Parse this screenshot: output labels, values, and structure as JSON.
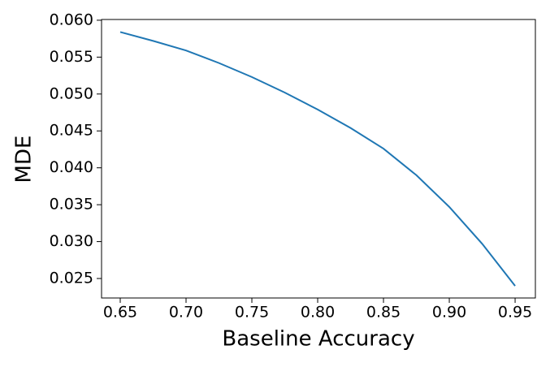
{
  "chart_data": {
    "type": "line",
    "x_label": "Baseline Accuracy",
    "y_label": "MDE",
    "x": [
      0.65,
      0.675,
      0.7,
      0.725,
      0.75,
      0.775,
      0.8,
      0.825,
      0.85,
      0.875,
      0.9,
      0.925,
      0.95
    ],
    "series": [
      {
        "color": "#1f77b4",
        "values": [
          0.0584,
          0.0572,
          0.0559,
          0.0542,
          0.0523,
          0.0502,
          0.0479,
          0.0454,
          0.0426,
          0.039,
          0.0347,
          0.0297,
          0.024
        ]
      }
    ],
    "xlim": [
      0.6358,
      0.9654
    ],
    "ylim": [
      0.02236,
      0.0601
    ],
    "xticks": [
      0.65,
      {
        "value": 0.7,
        "label": "0.70"
      },
      0.75,
      {
        "value": 0.8,
        "label": "0.80"
      },
      0.85,
      {
        "value": 0.9,
        "label": "0.90"
      },
      0.95
    ],
    "yticks": [
      0.025,
      {
        "value": 0.03,
        "label": "0.030"
      },
      0.035,
      {
        "value": 0.04,
        "label": "0.040"
      },
      0.045,
      {
        "value": 0.05,
        "label": "0.050"
      },
      0.055,
      {
        "value": 0.06,
        "label": "0.060"
      }
    ],
    "grid": false
  }
}
